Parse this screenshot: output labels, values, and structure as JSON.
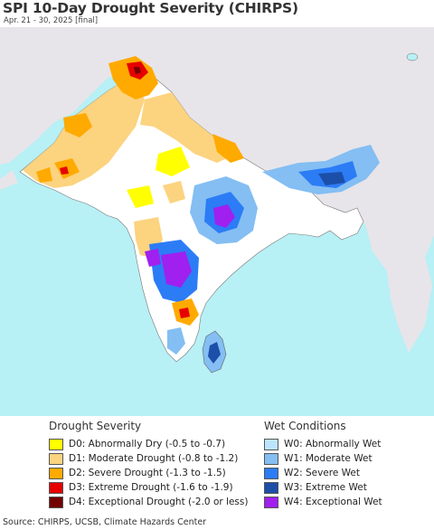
{
  "title": "SPI 10-Day Drought Severity (CHIRPS)",
  "subtitle": "Apr. 21 - 30, 2025 [final]",
  "colors": {
    "ocean": "#b7f0f5",
    "land_outside": "#e7e5ea",
    "no_drought": "#ffffff",
    "D0": "#ffff00",
    "D1": "#fcd37f",
    "D2": "#ffaa00",
    "D3": "#e60000",
    "D4": "#730000",
    "W0": "#bde4fd",
    "W1": "#84bef3",
    "W2": "#2c7cf6",
    "W3": "#1c4fa8",
    "W4": "#a020f0"
  },
  "legend": {
    "drought_title": "Drought Severity",
    "drought_items": [
      {
        "code": "D0",
        "label": "D0: Abnormally Dry (-0.5 to -0.7)"
      },
      {
        "code": "D1",
        "label": "D1: Moderate Drought (-0.8 to -1.2)"
      },
      {
        "code": "D2",
        "label": "D2: Severe Drought (-1.3 to -1.5)"
      },
      {
        "code": "D3",
        "label": "D3: Extreme Drought (-1.6 to -1.9)"
      },
      {
        "code": "D4",
        "label": "D4: Exceptional Drought (-2.0 or less)"
      }
    ],
    "wet_title": "Wet Conditions",
    "wet_items": [
      {
        "code": "W0",
        "label": "W0: Abnormally Wet"
      },
      {
        "code": "W1",
        "label": "W1: Moderate Wet"
      },
      {
        "code": "W2",
        "label": "W2: Severe Wet"
      },
      {
        "code": "W3",
        "label": "W3: Extreme Wet"
      },
      {
        "code": "W4",
        "label": "W4: Exceptional Wet"
      }
    ]
  },
  "footer": "Source: CHIRPS, UCSB, Climate Hazards Center"
}
